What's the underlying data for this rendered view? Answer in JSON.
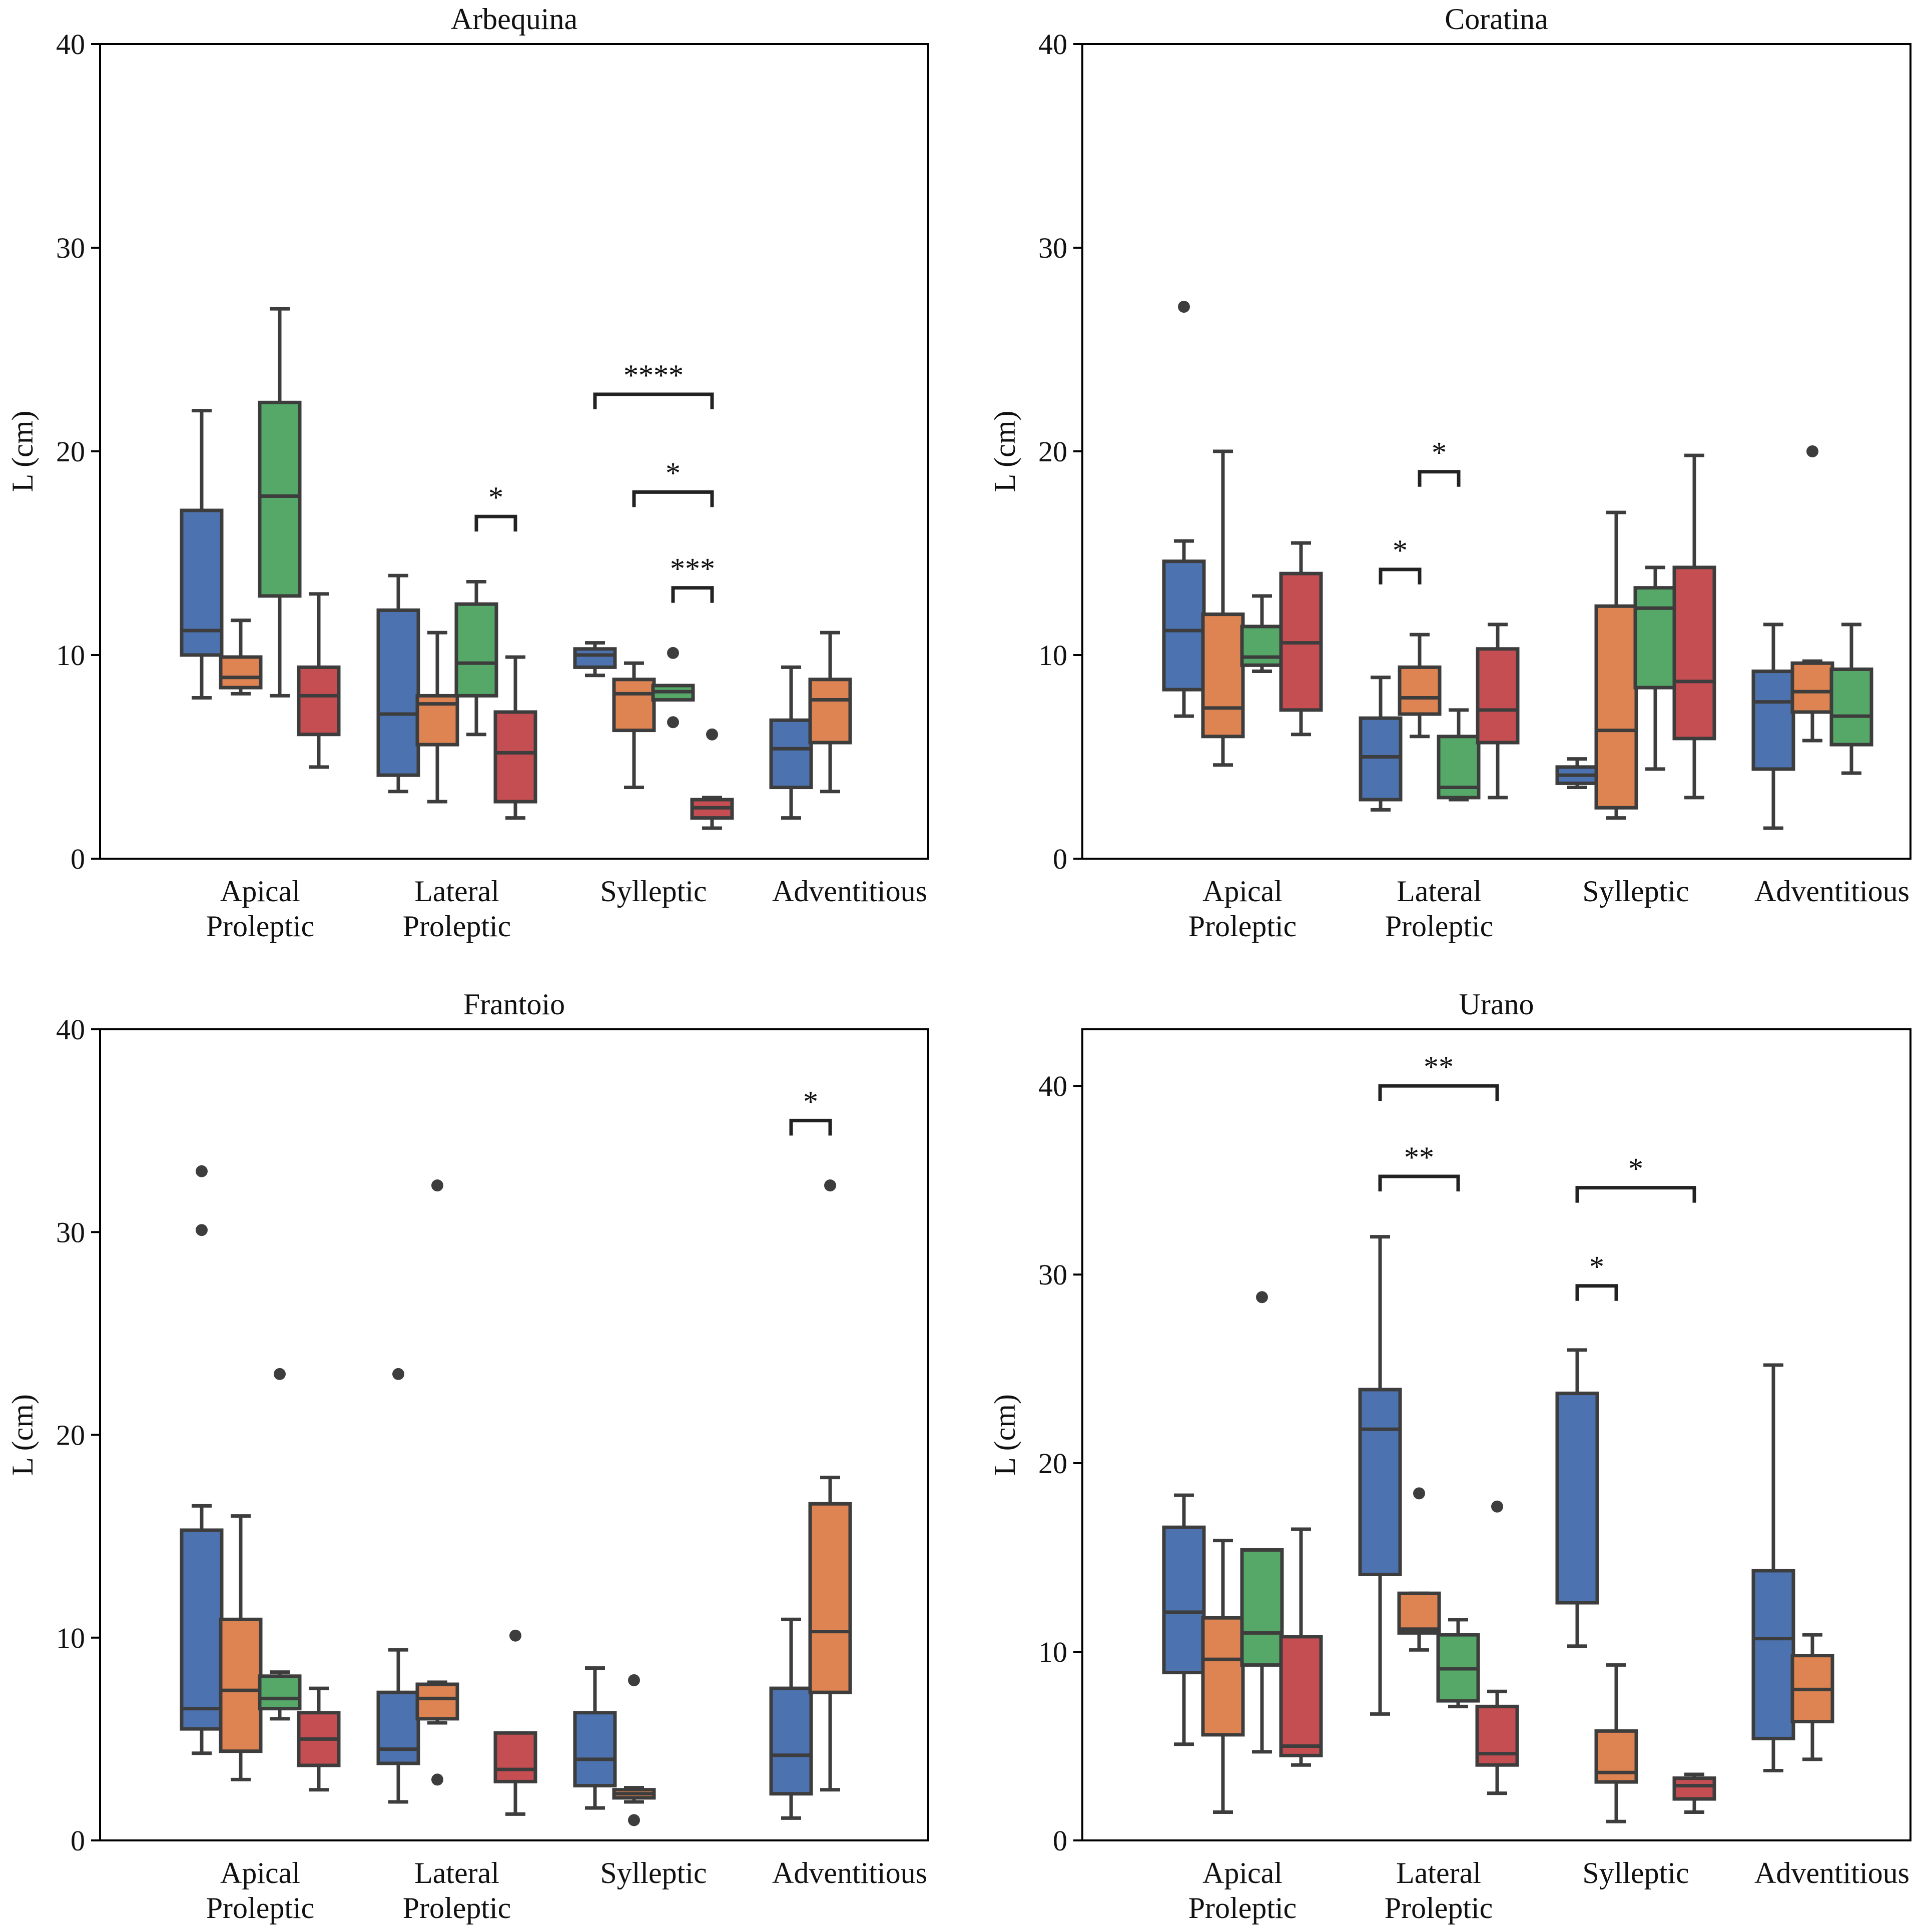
{
  "figure": {
    "group_colors": [
      "#4c72b0",
      "#dd8452",
      "#55a868",
      "#c44e52"
    ],
    "edge_color": "#3d3d3d"
  },
  "chart_data": [
    {
      "type": "box",
      "title": "Arbequina",
      "ylabel": "L (cm)",
      "ylim": [
        0,
        40
      ],
      "yticks": [
        "0",
        "10",
        "20",
        "30",
        "40"
      ],
      "categories": [
        [
          "Apical",
          "Proleptic"
        ],
        [
          "Lateral",
          "Proleptic"
        ],
        [
          "Sylleptic"
        ],
        [
          "Adventitious"
        ]
      ],
      "boxes": [
        {
          "cat": 0,
          "group": 0,
          "whislo": 7.9,
          "q1": 10.0,
          "med": 11.2,
          "q3": 17.1,
          "whishi": 22.0,
          "fliers": []
        },
        {
          "cat": 0,
          "group": 1,
          "whislo": 8.1,
          "q1": 8.4,
          "med": 8.9,
          "q3": 9.9,
          "whishi": 11.7,
          "fliers": []
        },
        {
          "cat": 0,
          "group": 2,
          "whislo": 8.0,
          "q1": 12.9,
          "med": 17.8,
          "q3": 22.4,
          "whishi": 27.0,
          "fliers": []
        },
        {
          "cat": 0,
          "group": 3,
          "whislo": 4.5,
          "q1": 6.1,
          "med": 8.0,
          "q3": 9.4,
          "whishi": 13.0,
          "fliers": []
        },
        {
          "cat": 1,
          "group": 0,
          "whislo": 3.3,
          "q1": 4.1,
          "med": 7.1,
          "q3": 12.2,
          "whishi": 13.9,
          "fliers": []
        },
        {
          "cat": 1,
          "group": 1,
          "whislo": 2.8,
          "q1": 5.6,
          "med": 7.6,
          "q3": 8.0,
          "whishi": 11.1,
          "fliers": []
        },
        {
          "cat": 1,
          "group": 2,
          "whislo": 6.1,
          "q1": 8.0,
          "med": 9.6,
          "q3": 12.5,
          "whishi": 13.6,
          "fliers": []
        },
        {
          "cat": 1,
          "group": 3,
          "whislo": 2.0,
          "q1": 2.8,
          "med": 5.2,
          "q3": 7.2,
          "whishi": 9.9,
          "fliers": []
        },
        {
          "cat": 2,
          "group": 0,
          "whislo": 9.0,
          "q1": 9.4,
          "med": 10.0,
          "q3": 10.3,
          "whishi": 10.6,
          "fliers": []
        },
        {
          "cat": 2,
          "group": 1,
          "whislo": 3.5,
          "q1": 6.3,
          "med": 8.1,
          "q3": 8.8,
          "whishi": 9.6,
          "fliers": []
        },
        {
          "cat": 2,
          "group": 2,
          "whislo": 7.8,
          "q1": 7.8,
          "med": 8.2,
          "q3": 8.5,
          "whishi": 8.5,
          "fliers": [
            10.1,
            6.7
          ]
        },
        {
          "cat": 2,
          "group": 3,
          "whislo": 1.5,
          "q1": 2.0,
          "med": 2.5,
          "q3": 2.9,
          "whishi": 3.0,
          "fliers": [
            6.1
          ]
        },
        {
          "cat": 3,
          "group": 0,
          "whislo": 2.0,
          "q1": 3.5,
          "med": 5.4,
          "q3": 6.8,
          "whishi": 9.4,
          "fliers": []
        },
        {
          "cat": 3,
          "group": 1,
          "whislo": 3.3,
          "q1": 5.7,
          "med": 7.8,
          "q3": 8.8,
          "whishi": 11.1,
          "fliers": []
        }
      ],
      "brackets": [
        {
          "from": [
            1,
            2
          ],
          "to": [
            1,
            3
          ],
          "y": 16.8,
          "label": "*"
        },
        {
          "from": [
            2,
            0
          ],
          "to": [
            2,
            3
          ],
          "y": 22.8,
          "label": "****"
        },
        {
          "from": [
            2,
            1
          ],
          "to": [
            2,
            3
          ],
          "y": 18.0,
          "label": "*"
        },
        {
          "from": [
            2,
            2
          ],
          "to": [
            2,
            3
          ],
          "y": 13.3,
          "label": "***"
        }
      ]
    },
    {
      "type": "box",
      "title": "Coratina",
      "ylabel": "L (cm)",
      "ylim": [
        0,
        40
      ],
      "yticks": [
        "0",
        "10",
        "20",
        "30",
        "40"
      ],
      "categories": [
        [
          "Apical",
          "Proleptic"
        ],
        [
          "Lateral",
          "Proleptic"
        ],
        [
          "Sylleptic"
        ],
        [
          "Adventitious"
        ]
      ],
      "boxes": [
        {
          "cat": 0,
          "group": 0,
          "whislo": 7.0,
          "q1": 8.3,
          "med": 11.2,
          "q3": 14.6,
          "whishi": 15.6,
          "fliers": [
            27.1
          ]
        },
        {
          "cat": 0,
          "group": 1,
          "whislo": 4.6,
          "q1": 6.0,
          "med": 7.4,
          "q3": 12.0,
          "whishi": 20.0,
          "fliers": []
        },
        {
          "cat": 0,
          "group": 2,
          "whislo": 9.2,
          "q1": 9.5,
          "med": 9.9,
          "q3": 11.4,
          "whishi": 12.9,
          "fliers": []
        },
        {
          "cat": 0,
          "group": 3,
          "whislo": 6.1,
          "q1": 7.3,
          "med": 10.6,
          "q3": 14.0,
          "whishi": 15.5,
          "fliers": []
        },
        {
          "cat": 1,
          "group": 0,
          "whislo": 2.4,
          "q1": 2.9,
          "med": 5.0,
          "q3": 6.9,
          "whishi": 8.9,
          "fliers": []
        },
        {
          "cat": 1,
          "group": 1,
          "whislo": 6.0,
          "q1": 7.1,
          "med": 7.9,
          "q3": 9.4,
          "whishi": 11.0,
          "fliers": []
        },
        {
          "cat": 1,
          "group": 2,
          "whislo": 2.9,
          "q1": 3.0,
          "med": 3.5,
          "q3": 6.0,
          "whishi": 7.3,
          "fliers": []
        },
        {
          "cat": 1,
          "group": 3,
          "whislo": 3.0,
          "q1": 5.7,
          "med": 7.3,
          "q3": 10.3,
          "whishi": 11.5,
          "fliers": []
        },
        {
          "cat": 2,
          "group": 0,
          "whislo": 3.5,
          "q1": 3.7,
          "med": 4.1,
          "q3": 4.5,
          "whishi": 4.9,
          "fliers": []
        },
        {
          "cat": 2,
          "group": 1,
          "whislo": 2.0,
          "q1": 2.5,
          "med": 6.3,
          "q3": 12.4,
          "whishi": 17.0,
          "fliers": []
        },
        {
          "cat": 2,
          "group": 2,
          "whislo": 4.4,
          "q1": 8.4,
          "med": 12.3,
          "q3": 13.3,
          "whishi": 14.3,
          "fliers": []
        },
        {
          "cat": 2,
          "group": 3,
          "whislo": 3.0,
          "q1": 5.9,
          "med": 8.7,
          "q3": 14.3,
          "whishi": 19.8,
          "fliers": []
        },
        {
          "cat": 3,
          "group": 0,
          "whislo": 1.5,
          "q1": 4.4,
          "med": 7.7,
          "q3": 9.2,
          "whishi": 11.5,
          "fliers": []
        },
        {
          "cat": 3,
          "group": 1,
          "whislo": 5.8,
          "q1": 7.2,
          "med": 8.2,
          "q3": 9.6,
          "whishi": 9.7,
          "fliers": [
            20.0
          ]
        },
        {
          "cat": 3,
          "group": 2,
          "whislo": 4.2,
          "q1": 5.6,
          "med": 7.0,
          "q3": 9.3,
          "whishi": 11.5,
          "fliers": []
        }
      ],
      "brackets": [
        {
          "from": [
            1,
            0
          ],
          "to": [
            1,
            1
          ],
          "y": 14.2,
          "label": "*"
        },
        {
          "from": [
            1,
            1
          ],
          "to": [
            1,
            2
          ],
          "y": 19.0,
          "label": "*"
        }
      ]
    },
    {
      "type": "box",
      "title": "Frantoio",
      "ylabel": "L (cm)",
      "ylim": [
        0,
        40
      ],
      "yticks": [
        "0",
        "10",
        "20",
        "30",
        "40"
      ],
      "categories": [
        [
          "Apical",
          "Proleptic"
        ],
        [
          "Lateral",
          "Proleptic"
        ],
        [
          "Sylleptic"
        ],
        [
          "Adventitious"
        ]
      ],
      "boxes": [
        {
          "cat": 0,
          "group": 0,
          "whislo": 4.3,
          "q1": 5.5,
          "med": 6.5,
          "q3": 15.3,
          "whishi": 16.5,
          "fliers": [
            33.0,
            30.1
          ]
        },
        {
          "cat": 0,
          "group": 1,
          "whislo": 3.0,
          "q1": 4.4,
          "med": 7.4,
          "q3": 10.9,
          "whishi": 16.0,
          "fliers": []
        },
        {
          "cat": 0,
          "group": 2,
          "whislo": 6.0,
          "q1": 6.5,
          "med": 7.0,
          "q3": 8.1,
          "whishi": 8.3,
          "fliers": [
            23.0
          ]
        },
        {
          "cat": 0,
          "group": 3,
          "whislo": 2.5,
          "q1": 3.7,
          "med": 5.0,
          "q3": 6.3,
          "whishi": 7.5,
          "fliers": []
        },
        {
          "cat": 1,
          "group": 0,
          "whislo": 1.9,
          "q1": 3.8,
          "med": 4.5,
          "q3": 7.3,
          "whishi": 9.4,
          "fliers": [
            23.0
          ]
        },
        {
          "cat": 1,
          "group": 1,
          "whislo": 5.8,
          "q1": 6.0,
          "med": 7.0,
          "q3": 7.7,
          "whishi": 7.8,
          "fliers": [
            32.3,
            3.0
          ]
        },
        {
          "cat": 1,
          "group": 3,
          "whislo": 1.3,
          "q1": 2.9,
          "med": 3.5,
          "q3": 5.3,
          "whishi": 5.3,
          "fliers": [
            10.1
          ]
        },
        {
          "cat": 2,
          "group": 0,
          "whislo": 1.6,
          "q1": 2.7,
          "med": 4.0,
          "q3": 6.3,
          "whishi": 8.5,
          "fliers": []
        },
        {
          "cat": 2,
          "group": 1,
          "whislo": 1.9,
          "q1": 2.1,
          "med": 2.3,
          "q3": 2.5,
          "whishi": 2.6,
          "fliers": [
            7.9,
            1.0
          ]
        },
        {
          "cat": 3,
          "group": 0,
          "whislo": 1.1,
          "q1": 2.3,
          "med": 4.2,
          "q3": 7.5,
          "whishi": 10.9,
          "fliers": []
        },
        {
          "cat": 3,
          "group": 1,
          "whislo": 2.5,
          "q1": 7.3,
          "med": 10.3,
          "q3": 16.6,
          "whishi": 17.9,
          "fliers": [
            32.3
          ]
        }
      ],
      "brackets": [
        {
          "from": [
            3,
            0
          ],
          "to": [
            3,
            1
          ],
          "y": 35.5,
          "label": "*"
        }
      ]
    },
    {
      "type": "box",
      "title": "Urano",
      "ylabel": "L (cm)",
      "ylim": [
        0,
        43
      ],
      "yticks": [
        "0",
        "10",
        "20",
        "30",
        "40"
      ],
      "categories": [
        [
          "Apical",
          "Proleptic"
        ],
        [
          "Lateral",
          "Proleptic"
        ],
        [
          "Sylleptic"
        ],
        [
          "Adventitious"
        ]
      ],
      "boxes": [
        {
          "cat": 0,
          "group": 0,
          "whislo": 5.1,
          "q1": 8.9,
          "med": 12.1,
          "q3": 16.6,
          "whishi": 18.3,
          "fliers": []
        },
        {
          "cat": 0,
          "group": 1,
          "whislo": 1.5,
          "q1": 5.6,
          "med": 9.6,
          "q3": 11.8,
          "whishi": 15.9,
          "fliers": []
        },
        {
          "cat": 0,
          "group": 2,
          "whislo": 4.7,
          "q1": 9.3,
          "med": 11.0,
          "q3": 15.4,
          "whishi": 15.4,
          "fliers": [
            28.8
          ]
        },
        {
          "cat": 0,
          "group": 3,
          "whislo": 4.0,
          "q1": 4.5,
          "med": 5.0,
          "q3": 10.8,
          "whishi": 16.5,
          "fliers": []
        },
        {
          "cat": 1,
          "group": 0,
          "whislo": 6.7,
          "q1": 14.1,
          "med": 21.8,
          "q3": 23.9,
          "whishi": 32.0,
          "fliers": []
        },
        {
          "cat": 1,
          "group": 1,
          "whislo": 10.1,
          "q1": 11.0,
          "med": 11.2,
          "q3": 13.1,
          "whishi": 13.1,
          "fliers": [
            18.4
          ]
        },
        {
          "cat": 1,
          "group": 2,
          "whislo": 7.1,
          "q1": 7.4,
          "med": 9.1,
          "q3": 10.9,
          "whishi": 11.7,
          "fliers": []
        },
        {
          "cat": 1,
          "group": 3,
          "whislo": 2.5,
          "q1": 4.0,
          "med": 4.6,
          "q3": 7.1,
          "whishi": 7.9,
          "fliers": [
            17.7
          ]
        },
        {
          "cat": 2,
          "group": 0,
          "whislo": 10.3,
          "q1": 12.6,
          "med": 12.6,
          "q3": 23.7,
          "whishi": 26.0,
          "fliers": []
        },
        {
          "cat": 2,
          "group": 1,
          "whislo": 1.0,
          "q1": 3.1,
          "med": 3.6,
          "q3": 5.8,
          "whishi": 9.3,
          "fliers": []
        },
        {
          "cat": 2,
          "group": 3,
          "whislo": 1.5,
          "q1": 2.2,
          "med": 2.9,
          "q3": 3.3,
          "whishi": 3.5,
          "fliers": []
        },
        {
          "cat": 3,
          "group": 0,
          "whislo": 3.7,
          "q1": 5.4,
          "med": 10.7,
          "q3": 14.3,
          "whishi": 25.2,
          "fliers": []
        },
        {
          "cat": 3,
          "group": 1,
          "whislo": 4.3,
          "q1": 6.3,
          "med": 8.0,
          "q3": 9.8,
          "whishi": 10.9,
          "fliers": []
        }
      ],
      "brackets": [
        {
          "from": [
            1,
            0
          ],
          "to": [
            1,
            3
          ],
          "y": 40.0,
          "label": "**"
        },
        {
          "from": [
            1,
            0
          ],
          "to": [
            1,
            2
          ],
          "y": 35.2,
          "label": "**"
        },
        {
          "from": [
            2,
            0
          ],
          "to": [
            2,
            3
          ],
          "y": 34.6,
          "label": "*"
        },
        {
          "from": [
            2,
            0
          ],
          "to": [
            2,
            1
          ],
          "y": 29.4,
          "label": "*"
        }
      ]
    }
  ]
}
